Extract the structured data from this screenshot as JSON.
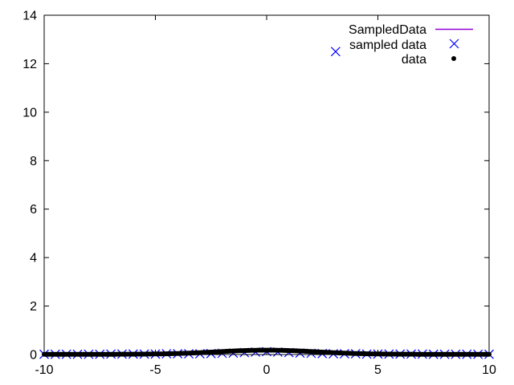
{
  "chart_data": {
    "type": "scatter",
    "title": "",
    "xlabel": "",
    "ylabel": "",
    "xlim": [
      -10,
      10
    ],
    "ylim": [
      0,
      14
    ],
    "grid": false,
    "legend_position": "top-right",
    "x_ticks": [
      "-10",
      "-5",
      "0",
      "5",
      "10"
    ],
    "y_ticks": [
      "0",
      "2",
      "4",
      "6",
      "8",
      "10",
      "12",
      "14"
    ],
    "colors": {
      "sampled_line": "#9400d3",
      "sampled_points": "#0000ff",
      "data_points": "#000000",
      "axis": "#000000"
    },
    "series": [
      {
        "name": "SampledData",
        "style": "line",
        "x": [
          -10,
          -8,
          -6,
          -4,
          -3,
          -2,
          -1,
          0,
          1,
          2,
          3,
          4,
          6,
          8,
          10
        ],
        "y": [
          0.01,
          0.01,
          0.02,
          0.03,
          0.04,
          0.07,
          0.12,
          0.15,
          0.12,
          0.07,
          0.04,
          0.03,
          0.02,
          0.01,
          0.01
        ]
      },
      {
        "name": "sampled data",
        "style": "x-marker",
        "x": [
          -10,
          -9.5,
          -9,
          -8.5,
          -8,
          -7.5,
          -7,
          -6.5,
          -6,
          -5.5,
          -5,
          -4.5,
          -4,
          -3.5,
          -3,
          -2.5,
          -2,
          -1.5,
          -1,
          -0.5,
          0,
          0.5,
          1,
          1.5,
          2,
          2.5,
          3,
          3.5,
          4,
          4.5,
          5,
          5.5,
          6,
          6.5,
          7,
          7.5,
          8,
          8.5,
          9,
          9.5,
          10,
          3.1
        ],
        "y": [
          0.01,
          0.01,
          0.01,
          0.01,
          0.01,
          0.01,
          0.02,
          0.02,
          0.02,
          0.02,
          0.02,
          0.03,
          0.03,
          0.03,
          0.03,
          0.04,
          0.05,
          0.06,
          0.08,
          0.1,
          0.12,
          0.1,
          0.08,
          0.06,
          0.05,
          0.04,
          0.03,
          0.03,
          0.03,
          0.02,
          0.02,
          0.02,
          0.02,
          0.02,
          0.02,
          0.01,
          0.01,
          0.01,
          0.01,
          0.01,
          0.01,
          12.5
        ]
      },
      {
        "name": "data",
        "style": "dot",
        "x_range": [
          -10,
          10
        ],
        "x_step": 0.05,
        "y_peak": 0.17,
        "y_width": 2.2
      }
    ]
  }
}
